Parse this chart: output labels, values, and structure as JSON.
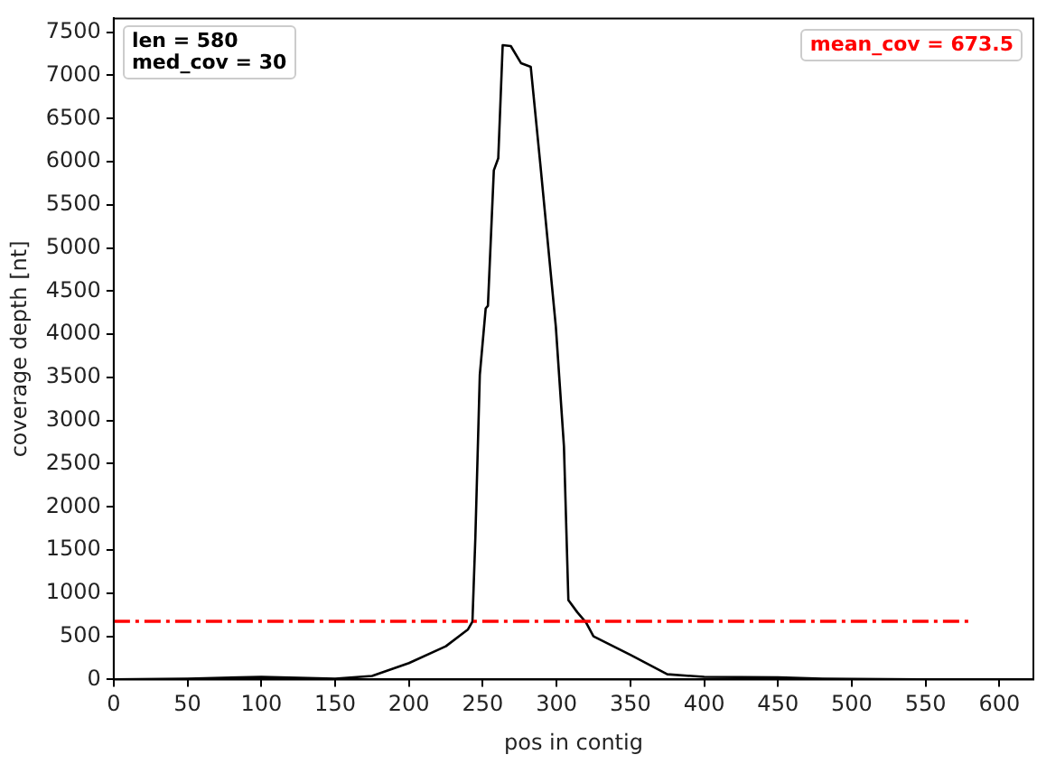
{
  "chart_data": {
    "type": "line",
    "xlabel": "pos in contig",
    "ylabel": "coverage depth [nt]",
    "annotations": [
      "len = 580",
      "med_cov = 30"
    ],
    "x": [
      0,
      50,
      100,
      150,
      175,
      200,
      225,
      240,
      243,
      245,
      248,
      252,
      253.5,
      257.5,
      260.5,
      263.5,
      269,
      276,
      282.5,
      289,
      299.5,
      305,
      308,
      314,
      320,
      325,
      350,
      375,
      400,
      450,
      480,
      500,
      580
    ],
    "series": [
      {
        "color": "#000000",
        "values": [
          0,
          10,
          30,
          10,
          40,
          190,
          385,
          580,
          670,
          1650,
          3530,
          4300,
          4330,
          5900,
          6040,
          7350,
          7340,
          7140,
          7100,
          5970,
          4090,
          2700,
          920,
          780,
          660,
          500,
          285,
          60,
          30,
          25,
          10,
          5,
          0
        ]
      }
    ],
    "xlim": [
      0,
      623
    ],
    "xticks": [
      0,
      50,
      100,
      150,
      200,
      250,
      300,
      350,
      400,
      450,
      500,
      550,
      600
    ],
    "ylim": [
      0,
      7660
    ],
    "yticks": [
      0,
      500,
      1000,
      1500,
      2000,
      2500,
      3000,
      3500,
      4000,
      4500,
      5000,
      5500,
      6000,
      6500,
      7000,
      7500
    ],
    "ref_lines": [
      {
        "axis": "y",
        "value": 673.5,
        "label": "mean_cov = 673.5",
        "color": "#ff0000",
        "line_style": "dashdot"
      }
    ],
    "grid": false,
    "legend": false,
    "marker": "none",
    "line_style": "solid"
  }
}
